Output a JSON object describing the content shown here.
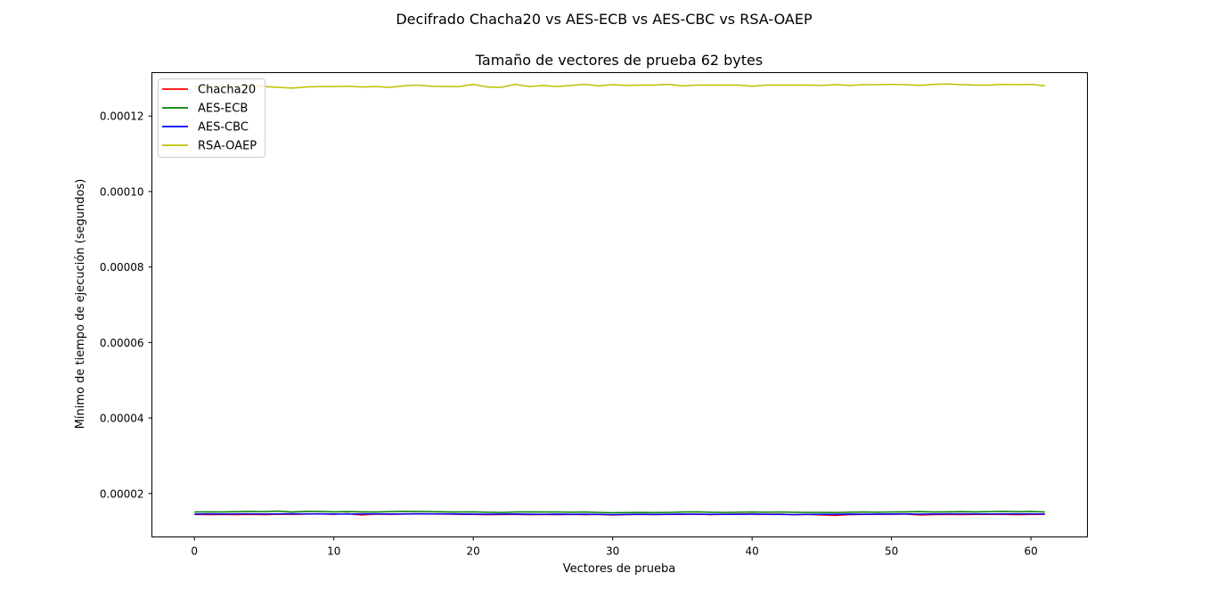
{
  "chart_data": {
    "type": "line",
    "suptitle": "Decifrado Chacha20 vs AES-ECB vs AES-CBC vs RSA-OAEP",
    "title": "Tamaño de vectores de prueba 62 bytes",
    "xlabel": "Vectores de prueba",
    "ylabel": "Mínimo de tiempo de ejecución (segundos)",
    "xlim": [
      -3.05,
      64.05
    ],
    "ylim": [
      8.5e-06,
      0.0001315
    ],
    "xticks": [
      0,
      10,
      20,
      30,
      40,
      50,
      60
    ],
    "xtick_labels": [
      "0",
      "10",
      "20",
      "30",
      "40",
      "50",
      "60"
    ],
    "yticks": [
      2e-05,
      4e-05,
      6e-05,
      8e-05,
      0.0001,
      0.00012
    ],
    "ytick_labels": [
      "0.00002",
      "0.00004",
      "0.00006",
      "0.00008",
      "0.00010",
      "0.00012"
    ],
    "legend_position": "upper-left",
    "grid": false,
    "series": [
      {
        "name": "Chacha20",
        "color": "#ff0000",
        "values": [
          1.445e-05,
          1.44e-05,
          1.442e-05,
          1.441e-05,
          1.445e-05,
          1.44e-05,
          1.448e-05,
          1.45e-05,
          1.455e-05,
          1.46e-05,
          1.45e-05,
          1.465e-05,
          1.43e-05,
          1.455e-05,
          1.45e-05,
          1.455e-05,
          1.46e-05,
          1.458e-05,
          1.455e-05,
          1.45e-05,
          1.445e-05,
          1.44e-05,
          1.442e-05,
          1.445e-05,
          1.44e-05,
          1.442e-05,
          1.44e-05,
          1.445e-05,
          1.44e-05,
          1.445e-05,
          1.43e-05,
          1.44e-05,
          1.445e-05,
          1.44e-05,
          1.445e-05,
          1.448e-05,
          1.455e-05,
          1.44e-05,
          1.45e-05,
          1.455e-05,
          1.46e-05,
          1.45e-05,
          1.455e-05,
          1.44e-05,
          1.445e-05,
          1.43e-05,
          1.42e-05,
          1.44e-05,
          1.445e-05,
          1.448e-05,
          1.45e-05,
          1.455e-05,
          1.43e-05,
          1.44e-05,
          1.445e-05,
          1.44e-05,
          1.445e-05,
          1.45e-05,
          1.445e-05,
          1.44e-05,
          1.445e-05,
          1.45e-05
        ]
      },
      {
        "name": "AES-ECB",
        "color": "#008000",
        "values": [
          1.51e-05,
          1.515e-05,
          1.512e-05,
          1.52e-05,
          1.525e-05,
          1.52e-05,
          1.535e-05,
          1.51e-05,
          1.53e-05,
          1.525e-05,
          1.515e-05,
          1.52e-05,
          1.515e-05,
          1.51e-05,
          1.52e-05,
          1.53e-05,
          1.525e-05,
          1.52e-05,
          1.515e-05,
          1.51e-05,
          1.515e-05,
          1.505e-05,
          1.5e-05,
          1.51e-05,
          1.515e-05,
          1.51e-05,
          1.512e-05,
          1.505e-05,
          1.51e-05,
          1.5e-05,
          1.49e-05,
          1.495e-05,
          1.5e-05,
          1.495e-05,
          1.5e-05,
          1.51e-05,
          1.515e-05,
          1.505e-05,
          1.5e-05,
          1.505e-05,
          1.51e-05,
          1.505e-05,
          1.51e-05,
          1.505e-05,
          1.5e-05,
          1.498e-05,
          1.495e-05,
          1.505e-05,
          1.51e-05,
          1.505e-05,
          1.51e-05,
          1.515e-05,
          1.52e-05,
          1.51e-05,
          1.515e-05,
          1.52e-05,
          1.515e-05,
          1.52e-05,
          1.53e-05,
          1.52e-05,
          1.525e-05,
          1.51e-05
        ]
      },
      {
        "name": "AES-CBC",
        "color": "#0000ff",
        "values": [
          1.455e-05,
          1.46e-05,
          1.458e-05,
          1.462e-05,
          1.46e-05,
          1.458e-05,
          1.46e-05,
          1.465e-05,
          1.46e-05,
          1.462e-05,
          1.458e-05,
          1.455e-05,
          1.46e-05,
          1.462e-05,
          1.458e-05,
          1.46e-05,
          1.465e-05,
          1.46e-05,
          1.462e-05,
          1.458e-05,
          1.455e-05,
          1.452e-05,
          1.455e-05,
          1.458e-05,
          1.452e-05,
          1.45e-05,
          1.455e-05,
          1.45e-05,
          1.452e-05,
          1.445e-05,
          1.44e-05,
          1.445e-05,
          1.448e-05,
          1.445e-05,
          1.45e-05,
          1.455e-05,
          1.452e-05,
          1.45e-05,
          1.448e-05,
          1.45e-05,
          1.452e-05,
          1.448e-05,
          1.445e-05,
          1.44e-05,
          1.445e-05,
          1.448e-05,
          1.45e-05,
          1.455e-05,
          1.452e-05,
          1.455e-05,
          1.458e-05,
          1.46e-05,
          1.455e-05,
          1.458e-05,
          1.46e-05,
          1.462e-05,
          1.46e-05,
          1.458e-05,
          1.46e-05,
          1.462e-05,
          1.46e-05,
          1.458e-05
        ]
      },
      {
        "name": "RSA-OAEP",
        "color": "#bfbf00",
        "values": [
          0.0001278,
          0.0001275,
          0.000128,
          0.0001278,
          0.0001282,
          0.0001278,
          0.0001276,
          0.0001274,
          0.0001277,
          0.0001278,
          0.0001278,
          0.0001279,
          0.0001277,
          0.0001278,
          0.0001276,
          0.000128,
          0.0001282,
          0.0001279,
          0.0001278,
          0.0001278,
          0.0001284,
          0.0001277,
          0.0001276,
          0.0001284,
          0.0001278,
          0.0001281,
          0.0001278,
          0.0001281,
          0.0001284,
          0.000128,
          0.0001283,
          0.0001281,
          0.0001282,
          0.0001282,
          0.0001284,
          0.000128,
          0.0001282,
          0.0001282,
          0.0001282,
          0.0001282,
          0.0001279,
          0.0001282,
          0.0001282,
          0.0001282,
          0.0001282,
          0.0001281,
          0.0001283,
          0.0001281,
          0.0001283,
          0.0001283,
          0.0001284,
          0.0001283,
          0.0001281,
          0.0001284,
          0.0001285,
          0.0001283,
          0.0001282,
          0.0001282,
          0.0001284,
          0.0001283,
          0.0001284,
          0.000128
        ]
      }
    ]
  }
}
